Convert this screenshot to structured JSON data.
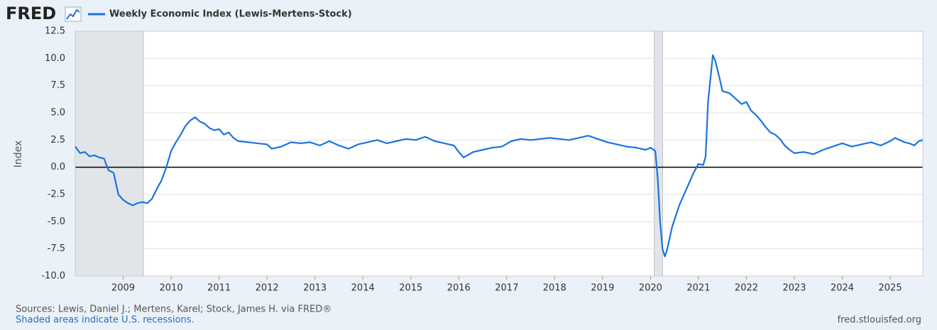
{
  "logo": "FRED",
  "chart_data": {
    "type": "line",
    "ylabel": "Index",
    "source": "Sources: Lewis, Daniel J.; Mertens, Karel; Stock, James H. via FRED®",
    "note": "Shaded areas indicate U.S. recessions.",
    "site": "fred.stlouisfed.org",
    "xlim": [
      2008.0,
      2025.68
    ],
    "xticks": [
      2009,
      2010,
      2011,
      2012,
      2013,
      2014,
      2015,
      2016,
      2017,
      2018,
      2019,
      2020,
      2021,
      2022,
      2023,
      2024,
      2025
    ],
    "ylim": [
      -10,
      12.5
    ],
    "yticks": [
      {
        "value": -10,
        "label": "-10.0"
      },
      -7.5,
      {
        "value": -5,
        "label": "-5.0"
      },
      -2.5,
      {
        "value": 0,
        "label": "0.0"
      },
      2.5,
      {
        "value": 5,
        "label": "5.0"
      },
      7.5,
      {
        "value": 10,
        "label": "10.0"
      },
      12.5
    ],
    "grid": true,
    "recessions": [
      [
        2008.0,
        2009.42
      ],
      [
        2020.08,
        2020.25
      ]
    ],
    "x": [
      2008.0,
      2008.1,
      2008.2,
      2008.3,
      2008.4,
      2008.5,
      2008.6,
      2008.65,
      2008.7,
      2008.8,
      2008.85,
      2008.9,
      2009.0,
      2009.1,
      2009.2,
      2009.3,
      2009.4,
      2009.5,
      2009.6,
      2009.7,
      2009.8,
      2009.9,
      2010.0,
      2010.1,
      2010.2,
      2010.3,
      2010.4,
      2010.5,
      2010.6,
      2010.7,
      2010.8,
      2010.9,
      2011.0,
      2011.1,
      2011.2,
      2011.3,
      2011.4,
      2011.6,
      2011.8,
      2012.0,
      2012.1,
      2012.3,
      2012.5,
      2012.7,
      2012.9,
      2013.1,
      2013.3,
      2013.5,
      2013.7,
      2013.9,
      2014.1,
      2014.3,
      2014.5,
      2014.7,
      2014.9,
      2015.1,
      2015.3,
      2015.5,
      2015.7,
      2015.9,
      2016.0,
      2016.1,
      2016.3,
      2016.5,
      2016.7,
      2016.9,
      2017.1,
      2017.3,
      2017.5,
      2017.7,
      2017.9,
      2018.1,
      2018.3,
      2018.5,
      2018.7,
      2018.9,
      2019.1,
      2019.3,
      2019.5,
      2019.7,
      2019.9,
      2020.0,
      2020.1,
      2020.15,
      2020.2,
      2020.25,
      2020.3,
      2020.35,
      2020.45,
      2020.6,
      2020.75,
      2020.9,
      2021.0,
      2021.1,
      2021.15,
      2021.2,
      2021.3,
      2021.35,
      2021.45,
      2021.5,
      2021.65,
      2021.8,
      2021.9,
      2022.0,
      2022.1,
      2022.2,
      2022.3,
      2022.4,
      2022.5,
      2022.6,
      2022.7,
      2022.8,
      2022.9,
      2023.0,
      2023.2,
      2023.4,
      2023.6,
      2023.8,
      2024.0,
      2024.2,
      2024.4,
      2024.6,
      2024.8,
      2025.0,
      2025.1,
      2025.2,
      2025.3,
      2025.4,
      2025.5,
      2025.6,
      2025.68
    ],
    "series": [
      {
        "name": "Weekly Economic Index (Lewis-Mertens-Stock)",
        "color": "#1a74e0",
        "values": [
          1.9,
          1.3,
          1.4,
          1.0,
          1.1,
          0.9,
          0.8,
          0.2,
          -0.3,
          -0.5,
          -1.5,
          -2.5,
          -3.0,
          -3.3,
          -3.5,
          -3.3,
          -3.2,
          -3.3,
          -2.9,
          -2.0,
          -1.2,
          0.0,
          1.5,
          2.3,
          3.0,
          3.8,
          4.3,
          4.6,
          4.2,
          4.0,
          3.6,
          3.4,
          3.5,
          3.0,
          3.2,
          2.7,
          2.4,
          2.3,
          2.2,
          2.1,
          1.7,
          1.9,
          2.3,
          2.2,
          2.3,
          2.0,
          2.4,
          2.0,
          1.7,
          2.1,
          2.3,
          2.5,
          2.2,
          2.4,
          2.6,
          2.5,
          2.8,
          2.4,
          2.2,
          2.0,
          1.4,
          0.9,
          1.4,
          1.6,
          1.8,
          1.9,
          2.4,
          2.6,
          2.5,
          2.6,
          2.7,
          2.6,
          2.5,
          2.7,
          2.9,
          2.6,
          2.3,
          2.1,
          1.9,
          1.8,
          1.6,
          1.8,
          1.5,
          -1.0,
          -5.0,
          -7.5,
          -8.2,
          -7.5,
          -5.5,
          -3.5,
          -2.0,
          -0.5,
          0.3,
          0.2,
          1.0,
          6.0,
          10.3,
          9.8,
          8.0,
          7.0,
          6.8,
          6.2,
          5.8,
          6.0,
          5.2,
          4.8,
          4.3,
          3.7,
          3.2,
          3.0,
          2.6,
          2.0,
          1.6,
          1.3,
          1.4,
          1.2,
          1.6,
          1.9,
          2.2,
          1.9,
          2.1,
          2.3,
          2.0,
          2.4,
          2.7,
          2.5,
          2.3,
          2.2,
          2.0,
          2.4,
          2.5
        ]
      }
    ]
  }
}
